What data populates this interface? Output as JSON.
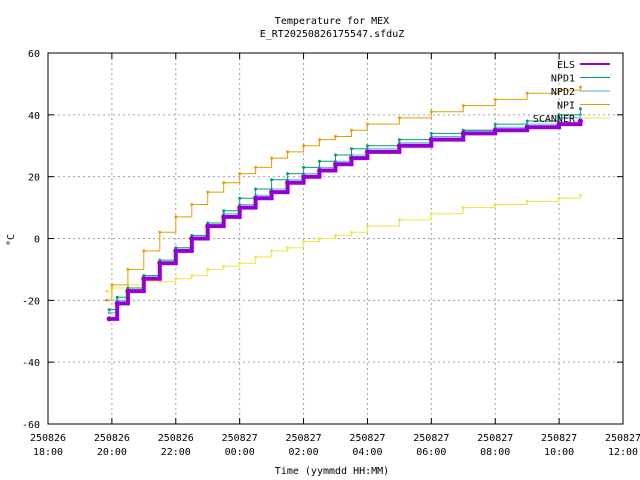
{
  "chart_data": {
    "type": "line",
    "title": "Temperature for MEX",
    "subtitle": "E_RT20250826175547.sfduZ",
    "xlabel": "Time (yymmdd HH:MM)",
    "ylabel": "°C",
    "xlim": [
      "2025-08-26T18:00",
      "2025-08-27T12:00"
    ],
    "ylim": [
      -60,
      60
    ],
    "x_ticks": [
      {
        "date": "250826",
        "time": "18:00",
        "x": "2025-08-26T18:00"
      },
      {
        "date": "250826",
        "time": "20:00",
        "x": "2025-08-26T20:00"
      },
      {
        "date": "250826",
        "time": "22:00",
        "x": "2025-08-26T22:00"
      },
      {
        "date": "250827",
        "time": "00:00",
        "x": "2025-08-27T00:00"
      },
      {
        "date": "250827",
        "time": "02:00",
        "x": "2025-08-27T02:00"
      },
      {
        "date": "250827",
        "time": "04:00",
        "x": "2025-08-27T04:00"
      },
      {
        "date": "250827",
        "time": "06:00",
        "x": "2025-08-27T06:00"
      },
      {
        "date": "250827",
        "time": "08:00",
        "x": "2025-08-27T08:00"
      },
      {
        "date": "250827",
        "time": "10:00",
        "x": "2025-08-27T10:00"
      },
      {
        "date": "250827",
        "time": "12:00",
        "x": "2025-08-27T12:00"
      }
    ],
    "y_ticks": [
      -60,
      -40,
      -20,
      0,
      20,
      40,
      60
    ],
    "grid": true,
    "legend": "top-right",
    "series": [
      {
        "name": "ELS",
        "color": "#9400d3",
        "x": [
          "2025-08-26T19:55",
          "2025-08-26T20:10",
          "2025-08-26T20:30",
          "2025-08-26T21:00",
          "2025-08-26T21:30",
          "2025-08-26T22:00",
          "2025-08-26T22:30",
          "2025-08-26T23:00",
          "2025-08-26T23:30",
          "2025-08-27T00:00",
          "2025-08-27T00:30",
          "2025-08-27T01:00",
          "2025-08-27T01:30",
          "2025-08-27T02:00",
          "2025-08-27T02:30",
          "2025-08-27T03:00",
          "2025-08-27T03:30",
          "2025-08-27T04:00",
          "2025-08-27T05:00",
          "2025-08-27T06:00",
          "2025-08-27T07:00",
          "2025-08-27T08:00",
          "2025-08-27T09:00",
          "2025-08-27T10:00",
          "2025-08-27T10:40"
        ],
        "y": [
          -26,
          -21,
          -17,
          -13,
          -8,
          -4,
          0,
          4,
          7,
          10,
          13,
          15,
          18,
          20,
          22,
          24,
          26,
          28,
          30,
          32,
          34,
          35,
          36,
          37,
          38
        ]
      },
      {
        "name": "NPD1",
        "color": "#009e73",
        "x": [
          "2025-08-26T19:55",
          "2025-08-26T20:10",
          "2025-08-26T20:30",
          "2025-08-26T21:00",
          "2025-08-26T21:30",
          "2025-08-26T22:00",
          "2025-08-26T22:30",
          "2025-08-26T23:00",
          "2025-08-26T23:30",
          "2025-08-27T00:00",
          "2025-08-27T00:30",
          "2025-08-27T01:00",
          "2025-08-27T01:30",
          "2025-08-27T02:00",
          "2025-08-27T02:30",
          "2025-08-27T03:00",
          "2025-08-27T03:30",
          "2025-08-27T04:00",
          "2025-08-27T05:00",
          "2025-08-27T06:00",
          "2025-08-27T07:00",
          "2025-08-27T08:00",
          "2025-08-27T09:00",
          "2025-08-27T10:00",
          "2025-08-27T10:40"
        ],
        "y": [
          -23,
          -19,
          -16,
          -12,
          -7,
          -3,
          1,
          5,
          9,
          13,
          16,
          19,
          21,
          23,
          25,
          27,
          29,
          30,
          32,
          34,
          35,
          37,
          38,
          40,
          42
        ]
      },
      {
        "name": "NPD2",
        "color": "#56b4e9",
        "x": [
          "2025-08-26T19:55",
          "2025-08-26T20:10",
          "2025-08-26T20:30",
          "2025-08-26T21:00",
          "2025-08-26T21:30",
          "2025-08-26T22:00",
          "2025-08-26T22:30",
          "2025-08-26T23:00",
          "2025-08-26T23:30",
          "2025-08-27T00:00",
          "2025-08-27T00:30",
          "2025-08-27T01:00",
          "2025-08-27T01:30",
          "2025-08-27T02:00",
          "2025-08-27T02:30",
          "2025-08-27T03:00",
          "2025-08-27T03:30",
          "2025-08-27T04:00",
          "2025-08-27T05:00",
          "2025-08-27T06:00",
          "2025-08-27T07:00",
          "2025-08-27T08:00",
          "2025-08-27T09:00",
          "2025-08-27T10:00",
          "2025-08-27T10:40"
        ],
        "y": [
          -24,
          -20,
          -16,
          -12,
          -8,
          -4,
          0,
          4,
          8,
          11,
          14,
          16,
          19,
          21,
          23,
          25,
          27,
          29,
          31,
          33,
          35,
          36,
          37,
          39,
          40
        ]
      },
      {
        "name": "NPI",
        "color": "#e69f00",
        "x": [
          "2025-08-26T19:50",
          "2025-08-26T20:00",
          "2025-08-26T20:30",
          "2025-08-26T21:00",
          "2025-08-26T21:30",
          "2025-08-26T22:00",
          "2025-08-26T22:30",
          "2025-08-26T23:00",
          "2025-08-26T23:30",
          "2025-08-27T00:00",
          "2025-08-27T00:30",
          "2025-08-27T01:00",
          "2025-08-27T01:30",
          "2025-08-27T02:00",
          "2025-08-27T02:30",
          "2025-08-27T03:00",
          "2025-08-27T03:30",
          "2025-08-27T04:00",
          "2025-08-27T05:00",
          "2025-08-27T06:00",
          "2025-08-27T07:00",
          "2025-08-27T08:00",
          "2025-08-27T09:00",
          "2025-08-27T10:00",
          "2025-08-27T10:40"
        ],
        "y": [
          -20,
          -15,
          -10,
          -4,
          2,
          7,
          11,
          15,
          18,
          21,
          23,
          26,
          28,
          30,
          32,
          33,
          35,
          37,
          39,
          41,
          43,
          45,
          47,
          48,
          49
        ]
      },
      {
        "name": "SCANNER",
        "color": "#f0e442",
        "x": [
          "2025-08-26T19:50",
          "2025-08-26T20:00",
          "2025-08-26T20:30",
          "2025-08-26T21:00",
          "2025-08-26T21:30",
          "2025-08-26T22:00",
          "2025-08-26T22:30",
          "2025-08-26T23:00",
          "2025-08-26T23:30",
          "2025-08-27T00:00",
          "2025-08-27T00:30",
          "2025-08-27T01:00",
          "2025-08-27T01:30",
          "2025-08-27T02:00",
          "2025-08-27T02:30",
          "2025-08-27T03:00",
          "2025-08-27T03:30",
          "2025-08-27T04:00",
          "2025-08-27T05:00",
          "2025-08-27T06:00",
          "2025-08-27T07:00",
          "2025-08-27T08:00",
          "2025-08-27T09:00",
          "2025-08-27T10:00",
          "2025-08-27T10:40"
        ],
        "y": [
          -17,
          -16,
          -15,
          -14,
          -14,
          -13,
          -12,
          -10,
          -9,
          -8,
          -6,
          -4,
          -3,
          -1,
          0,
          1,
          2,
          4,
          6,
          8,
          10,
          11,
          12,
          13,
          14
        ]
      }
    ]
  }
}
